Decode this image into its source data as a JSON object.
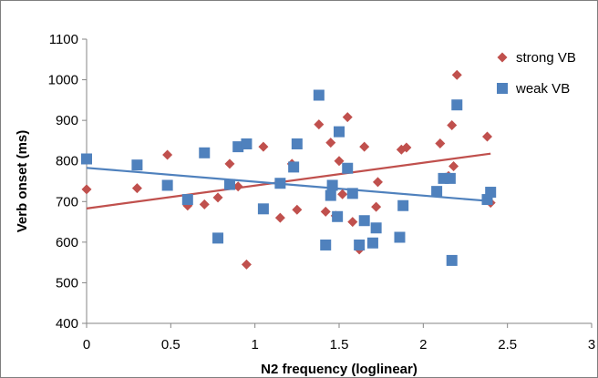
{
  "chart_data": {
    "type": "scatter",
    "title": "",
    "xlabel": "N2 frequency (loglinear)",
    "ylabel": "Verb onset (ms)",
    "xlim": [
      0,
      3
    ],
    "ylim": [
      400,
      1100
    ],
    "x_ticks": [
      "0",
      "0.5",
      "1",
      "1.5",
      "2",
      "2.5",
      "3"
    ],
    "y_ticks": [
      "400",
      "500",
      "600",
      "700",
      "800",
      "900",
      "1000",
      "1100"
    ],
    "grid": false,
    "legend_position": "top-right",
    "series": [
      {
        "name": "strong VB",
        "marker": "diamond",
        "color": "#c0504d",
        "points": [
          [
            0.0,
            730
          ],
          [
            0.3,
            733
          ],
          [
            0.48,
            815
          ],
          [
            0.6,
            690
          ],
          [
            0.7,
            693
          ],
          [
            0.78,
            710
          ],
          [
            0.85,
            793
          ],
          [
            0.9,
            737
          ],
          [
            0.95,
            545
          ],
          [
            1.05,
            835
          ],
          [
            1.15,
            660
          ],
          [
            1.22,
            793
          ],
          [
            1.25,
            680
          ],
          [
            1.38,
            890
          ],
          [
            1.42,
            675
          ],
          [
            1.45,
            845
          ],
          [
            1.48,
            665
          ],
          [
            1.5,
            800
          ],
          [
            1.52,
            718
          ],
          [
            1.55,
            908
          ],
          [
            1.58,
            650
          ],
          [
            1.62,
            582
          ],
          [
            1.65,
            835
          ],
          [
            1.72,
            687
          ],
          [
            1.73,
            748
          ],
          [
            1.87,
            828
          ],
          [
            1.9,
            833
          ],
          [
            2.1,
            843
          ],
          [
            2.15,
            763
          ],
          [
            2.17,
            888
          ],
          [
            2.18,
            787
          ],
          [
            2.2,
            1012
          ],
          [
            2.38,
            860
          ],
          [
            2.4,
            697
          ]
        ],
        "trendline": {
          "from": [
            0,
            683
          ],
          "to": [
            2.4,
            818
          ]
        }
      },
      {
        "name": "weak VB",
        "marker": "square",
        "color": "#4f81bd",
        "points": [
          [
            0.0,
            805
          ],
          [
            0.3,
            790
          ],
          [
            0.48,
            740
          ],
          [
            0.6,
            705
          ],
          [
            0.7,
            820
          ],
          [
            0.78,
            610
          ],
          [
            0.85,
            742
          ],
          [
            0.9,
            835
          ],
          [
            0.95,
            842
          ],
          [
            1.05,
            682
          ],
          [
            1.15,
            745
          ],
          [
            1.23,
            785
          ],
          [
            1.25,
            842
          ],
          [
            1.38,
            962
          ],
          [
            1.42,
            593
          ],
          [
            1.45,
            715
          ],
          [
            1.46,
            740
          ],
          [
            1.49,
            663
          ],
          [
            1.5,
            872
          ],
          [
            1.55,
            782
          ],
          [
            1.58,
            720
          ],
          [
            1.62,
            593
          ],
          [
            1.65,
            653
          ],
          [
            1.7,
            598
          ],
          [
            1.72,
            635
          ],
          [
            1.86,
            612
          ],
          [
            1.88,
            690
          ],
          [
            2.08,
            725
          ],
          [
            2.12,
            757
          ],
          [
            2.16,
            757
          ],
          [
            2.17,
            555
          ],
          [
            2.2,
            938
          ],
          [
            2.38,
            705
          ],
          [
            2.4,
            723
          ]
        ],
        "trendline": {
          "from": [
            0,
            783
          ],
          "to": [
            2.4,
            701
          ]
        }
      }
    ]
  }
}
